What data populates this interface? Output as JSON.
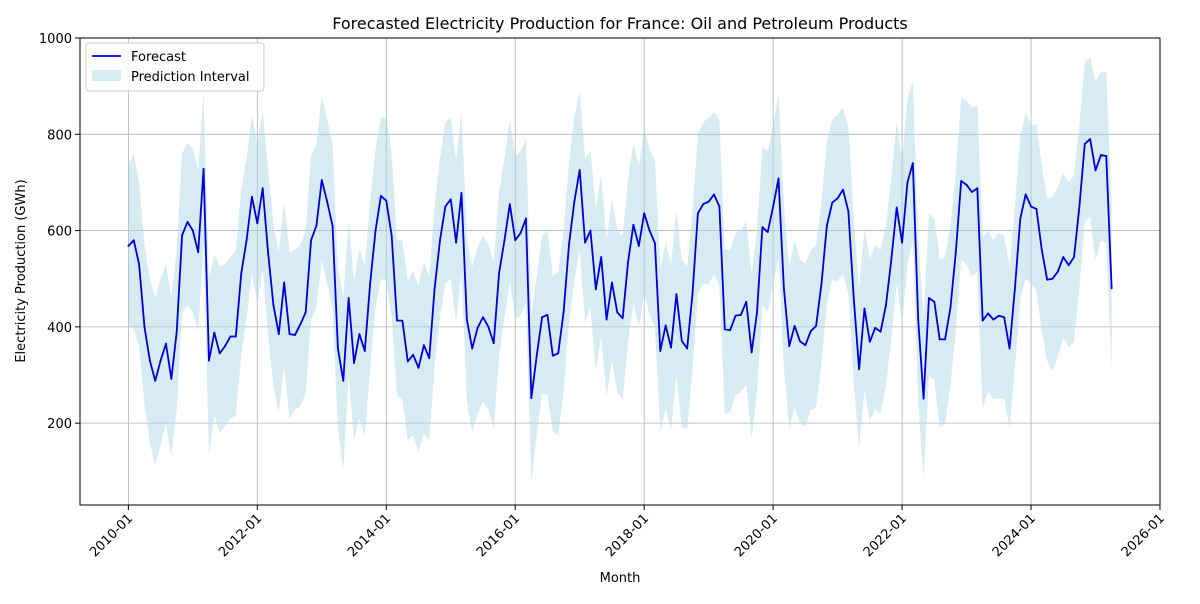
{
  "chart_data": {
    "type": "line",
    "title": "Forecasted Electricity Production for France: Oil and Petroleum Products",
    "xlabel": "Month",
    "ylabel": "Electricity Production (GWh)",
    "xlim": [
      "2009-04",
      "2026-01"
    ],
    "ylim": [
      30,
      1000
    ],
    "x_ticks": [
      "2010-01",
      "2012-01",
      "2014-01",
      "2016-01",
      "2018-01",
      "2020-01",
      "2022-01",
      "2024-01",
      "2026-01"
    ],
    "y_ticks": [
      200,
      400,
      600,
      800,
      1000
    ],
    "grid": true,
    "legend_position": "upper left",
    "colors": {
      "forecast": "#0000dd",
      "interval": "#add8e6"
    },
    "series": [
      {
        "name": "Forecast",
        "x": [
          "2010-01",
          "2010-02",
          "2010-03",
          "2010-04",
          "2010-05",
          "2010-06",
          "2010-07",
          "2010-08",
          "2010-09",
          "2010-10",
          "2010-11",
          "2010-12",
          "2011-01",
          "2011-02",
          "2011-03",
          "2011-04",
          "2011-05",
          "2011-06",
          "2011-07",
          "2011-08",
          "2011-09",
          "2011-10",
          "2011-11",
          "2011-12",
          "2012-01",
          "2012-02",
          "2012-03",
          "2012-04",
          "2012-05",
          "2012-06",
          "2012-07",
          "2012-08",
          "2012-09",
          "2012-10",
          "2012-11",
          "2012-12",
          "2013-01",
          "2013-02",
          "2013-03",
          "2013-04",
          "2013-05",
          "2013-06",
          "2013-07",
          "2013-08",
          "2013-09",
          "2013-10",
          "2013-11",
          "2013-12",
          "2014-01",
          "2014-02",
          "2014-03",
          "2014-04",
          "2014-05",
          "2014-06",
          "2014-07",
          "2014-08",
          "2014-09",
          "2014-10",
          "2014-11",
          "2014-12",
          "2015-01",
          "2015-02",
          "2015-03",
          "2015-04",
          "2015-05",
          "2015-06",
          "2015-07",
          "2015-08",
          "2015-09",
          "2015-10",
          "2015-11",
          "2015-12",
          "2016-01",
          "2016-02",
          "2016-03",
          "2016-04",
          "2016-05",
          "2016-06",
          "2016-07",
          "2016-08",
          "2016-09",
          "2016-10",
          "2016-11",
          "2016-12",
          "2017-01",
          "2017-02",
          "2017-03",
          "2017-04",
          "2017-05",
          "2017-06",
          "2017-07",
          "2017-08",
          "2017-09",
          "2017-10",
          "2017-11",
          "2017-12",
          "2018-01",
          "2018-02",
          "2018-03",
          "2018-04",
          "2018-05",
          "2018-06",
          "2018-07",
          "2018-08",
          "2018-09",
          "2018-10",
          "2018-11",
          "2018-12",
          "2019-01",
          "2019-02",
          "2019-03",
          "2019-04",
          "2019-05",
          "2019-06",
          "2019-07",
          "2019-08",
          "2019-09",
          "2019-10",
          "2019-11",
          "2019-12",
          "2020-01",
          "2020-02",
          "2020-03",
          "2020-04",
          "2020-05",
          "2020-06",
          "2020-07",
          "2020-08",
          "2020-09",
          "2020-10",
          "2020-11",
          "2020-12",
          "2021-01",
          "2021-02",
          "2021-03",
          "2021-04",
          "2021-05",
          "2021-06",
          "2021-07",
          "2021-08",
          "2021-09",
          "2021-10",
          "2021-11",
          "2021-12",
          "2022-01",
          "2022-02",
          "2022-03",
          "2022-04",
          "2022-05",
          "2022-06",
          "2022-07",
          "2022-08",
          "2022-09",
          "2022-10",
          "2022-11",
          "2022-12",
          "2023-01",
          "2023-02",
          "2023-03",
          "2023-04",
          "2023-05",
          "2023-06",
          "2023-07",
          "2023-08",
          "2023-09",
          "2023-10",
          "2023-11",
          "2023-12",
          "2024-01",
          "2024-02",
          "2024-03",
          "2024-04",
          "2024-05",
          "2024-06",
          "2024-07",
          "2024-08",
          "2024-09",
          "2024-10",
          "2024-11",
          "2024-12",
          "2025-01",
          "2025-02",
          "2025-03",
          "2025-04"
        ],
        "values": [
          568,
          580,
          530,
          400,
          330,
          288,
          330,
          365,
          292,
          390,
          590,
          618,
          600,
          555,
          728,
          330,
          388,
          345,
          360,
          380,
          380,
          510,
          580,
          670,
          615,
          688,
          555,
          445,
          385,
          492,
          385,
          383,
          405,
          430,
          580,
          610,
          705,
          660,
          610,
          355,
          288,
          460,
          325,
          385,
          350,
          490,
          600,
          672,
          662,
          590,
          413,
          413,
          328,
          342,
          315,
          362,
          335,
          480,
          580,
          650,
          665,
          575,
          678,
          415,
          355,
          398,
          420,
          400,
          366,
          512,
          580,
          655,
          580,
          595,
          625,
          252,
          340,
          420,
          425,
          340,
          345,
          430,
          570,
          660,
          726,
          575,
          600,
          478,
          545,
          415,
          492,
          430,
          418,
          535,
          612,
          568,
          636,
          600,
          574,
          350,
          403,
          357,
          468,
          371,
          355,
          470,
          636,
          655,
          660,
          675,
          650,
          395,
          393,
          423,
          425,
          452,
          347,
          430,
          607,
          597,
          650,
          708,
          480,
          360,
          402,
          370,
          362,
          391,
          402,
          490,
          610,
          658,
          667,
          685,
          640,
          460,
          312,
          438,
          369,
          398,
          390,
          445,
          540,
          648,
          575,
          700,
          740,
          415,
          251,
          460,
          452,
          374,
          374,
          440,
          555,
          703,
          695,
          680,
          688,
          413,
          428,
          415,
          423,
          420,
          355,
          480,
          625,
          675,
          650,
          645,
          560,
          498,
          500,
          515,
          545,
          528,
          545,
          650,
          780,
          790,
          725,
          757,
          755,
          480
        ]
      },
      {
        "name": "Prediction Interval",
        "x": [
          "2010-01",
          "2010-02",
          "2010-03",
          "2010-04",
          "2010-05",
          "2010-06",
          "2010-07",
          "2010-08",
          "2010-09",
          "2010-10",
          "2010-11",
          "2010-12",
          "2011-01",
          "2011-02",
          "2011-03",
          "2011-04",
          "2011-05",
          "2011-06",
          "2011-07",
          "2011-08",
          "2011-09",
          "2011-10",
          "2011-11",
          "2011-12",
          "2012-01",
          "2012-02",
          "2012-03",
          "2012-04",
          "2012-05",
          "2012-06",
          "2012-07",
          "2012-08",
          "2012-09",
          "2012-10",
          "2012-11",
          "2012-12",
          "2013-01",
          "2013-02",
          "2013-03",
          "2013-04",
          "2013-05",
          "2013-06",
          "2013-07",
          "2013-08",
          "2013-09",
          "2013-10",
          "2013-11",
          "2013-12",
          "2014-01",
          "2014-02",
          "2014-03",
          "2014-04",
          "2014-05",
          "2014-06",
          "2014-07",
          "2014-08",
          "2014-09",
          "2014-10",
          "2014-11",
          "2014-12",
          "2015-01",
          "2015-02",
          "2015-03",
          "2015-04",
          "2015-05",
          "2015-06",
          "2015-07",
          "2015-08",
          "2015-09",
          "2015-10",
          "2015-11",
          "2015-12",
          "2016-01",
          "2016-02",
          "2016-03",
          "2016-04",
          "2016-05",
          "2016-06",
          "2016-07",
          "2016-08",
          "2016-09",
          "2016-10",
          "2016-11",
          "2016-12",
          "2017-01",
          "2017-02",
          "2017-03",
          "2017-04",
          "2017-05",
          "2017-06",
          "2017-07",
          "2017-08",
          "2017-09",
          "2017-10",
          "2017-11",
          "2017-12",
          "2018-01",
          "2018-02",
          "2018-03",
          "2018-04",
          "2018-05",
          "2018-06",
          "2018-07",
          "2018-08",
          "2018-09",
          "2018-10",
          "2018-11",
          "2018-12",
          "2019-01",
          "2019-02",
          "2019-03",
          "2019-04",
          "2019-05",
          "2019-06",
          "2019-07",
          "2019-08",
          "2019-09",
          "2019-10",
          "2019-11",
          "2019-12",
          "2020-01",
          "2020-02",
          "2020-03",
          "2020-04",
          "2020-05",
          "2020-06",
          "2020-07",
          "2020-08",
          "2020-09",
          "2020-10",
          "2020-11",
          "2020-12",
          "2021-01",
          "2021-02",
          "2021-03",
          "2021-04",
          "2021-05",
          "2021-06",
          "2021-07",
          "2021-08",
          "2021-09",
          "2021-10",
          "2021-11",
          "2021-12",
          "2022-01",
          "2022-02",
          "2022-03",
          "2022-04",
          "2022-05",
          "2022-06",
          "2022-07",
          "2022-08",
          "2022-09",
          "2022-10",
          "2022-11",
          "2022-12",
          "2023-01",
          "2023-02",
          "2023-03",
          "2023-04",
          "2023-05",
          "2023-06",
          "2023-07",
          "2023-08",
          "2023-09",
          "2023-10",
          "2023-11",
          "2023-12",
          "2024-01",
          "2024-02",
          "2024-03",
          "2024-04",
          "2024-05",
          "2024-06",
          "2024-07",
          "2024-08",
          "2024-09",
          "2024-10",
          "2024-11",
          "2024-12",
          "2025-01",
          "2025-02",
          "2025-03",
          "2025-04"
        ],
        "lower": [
          405,
          395,
          360,
          240,
          160,
          112,
          155,
          200,
          132,
          230,
          430,
          445,
          430,
          390,
          575,
          132,
          218,
          180,
          195,
          210,
          215,
          340,
          420,
          510,
          450,
          520,
          385,
          275,
          222,
          320,
          208,
          228,
          235,
          262,
          415,
          440,
          540,
          490,
          440,
          190,
          105,
          300,
          165,
          210,
          172,
          315,
          440,
          500,
          495,
          420,
          258,
          248,
          165,
          175,
          142,
          178,
          165,
          320,
          420,
          490,
          500,
          410,
          510,
          245,
          182,
          220,
          245,
          228,
          190,
          340,
          420,
          495,
          415,
          425,
          450,
          78,
          175,
          262,
          258,
          182,
          175,
          265,
          410,
          495,
          560,
          410,
          440,
          308,
          380,
          255,
          330,
          265,
          248,
          370,
          450,
          400,
          470,
          425,
          400,
          182,
          230,
          185,
          300,
          192,
          188,
          310,
          470,
          490,
          488,
          510,
          485,
          220,
          222,
          258,
          265,
          280,
          168,
          265,
          445,
          432,
          490,
          545,
          315,
          190,
          235,
          200,
          192,
          228,
          232,
          325,
          450,
          498,
          495,
          510,
          470,
          285,
          148,
          270,
          205,
          230,
          220,
          280,
          375,
          490,
          410,
          530,
          580,
          245,
          82,
          298,
          290,
          192,
          197,
          280,
          390,
          540,
          530,
          505,
          515,
          230,
          265,
          250,
          252,
          250,
          190,
          315,
          460,
          500,
          490,
          475,
          390,
          330,
          308,
          340,
          378,
          358,
          370,
          480,
          620,
          628,
          540,
          580,
          575,
          308
        ],
        "upper": [
          735,
          760,
          700,
          570,
          500,
          460,
          500,
          530,
          460,
          560,
          760,
          782,
          770,
          725,
          885,
          500,
          550,
          525,
          530,
          545,
          560,
          685,
          750,
          840,
          780,
          850,
          725,
          615,
          555,
          660,
          555,
          560,
          570,
          600,
          755,
          780,
          880,
          830,
          780,
          525,
          460,
          620,
          495,
          560,
          525,
          660,
          770,
          835,
          835,
          760,
          580,
          580,
          495,
          515,
          485,
          535,
          505,
          650,
          750,
          825,
          835,
          745,
          845,
          585,
          525,
          565,
          590,
          570,
          535,
          680,
          750,
          830,
          755,
          765,
          790,
          425,
          505,
          590,
          600,
          505,
          515,
          600,
          740,
          835,
          890,
          750,
          765,
          645,
          715,
          580,
          665,
          600,
          590,
          705,
          780,
          735,
          810,
          770,
          745,
          520,
          575,
          530,
          640,
          540,
          525,
          640,
          800,
          825,
          835,
          845,
          830,
          560,
          560,
          595,
          600,
          620,
          510,
          600,
          775,
          765,
          820,
          885,
          650,
          525,
          580,
          540,
          530,
          560,
          570,
          660,
          785,
          830,
          840,
          855,
          815,
          625,
          478,
          605,
          540,
          570,
          560,
          610,
          710,
          825,
          745,
          875,
          910,
          585,
          420,
          635,
          625,
          540,
          545,
          610,
          720,
          875,
          870,
          855,
          860,
          585,
          600,
          580,
          595,
          590,
          525,
          650,
          795,
          845,
          820,
          820,
          735,
          665,
          670,
          690,
          720,
          700,
          715,
          820,
          950,
          960,
          910,
          930,
          928,
          650
        ]
      }
    ]
  }
}
